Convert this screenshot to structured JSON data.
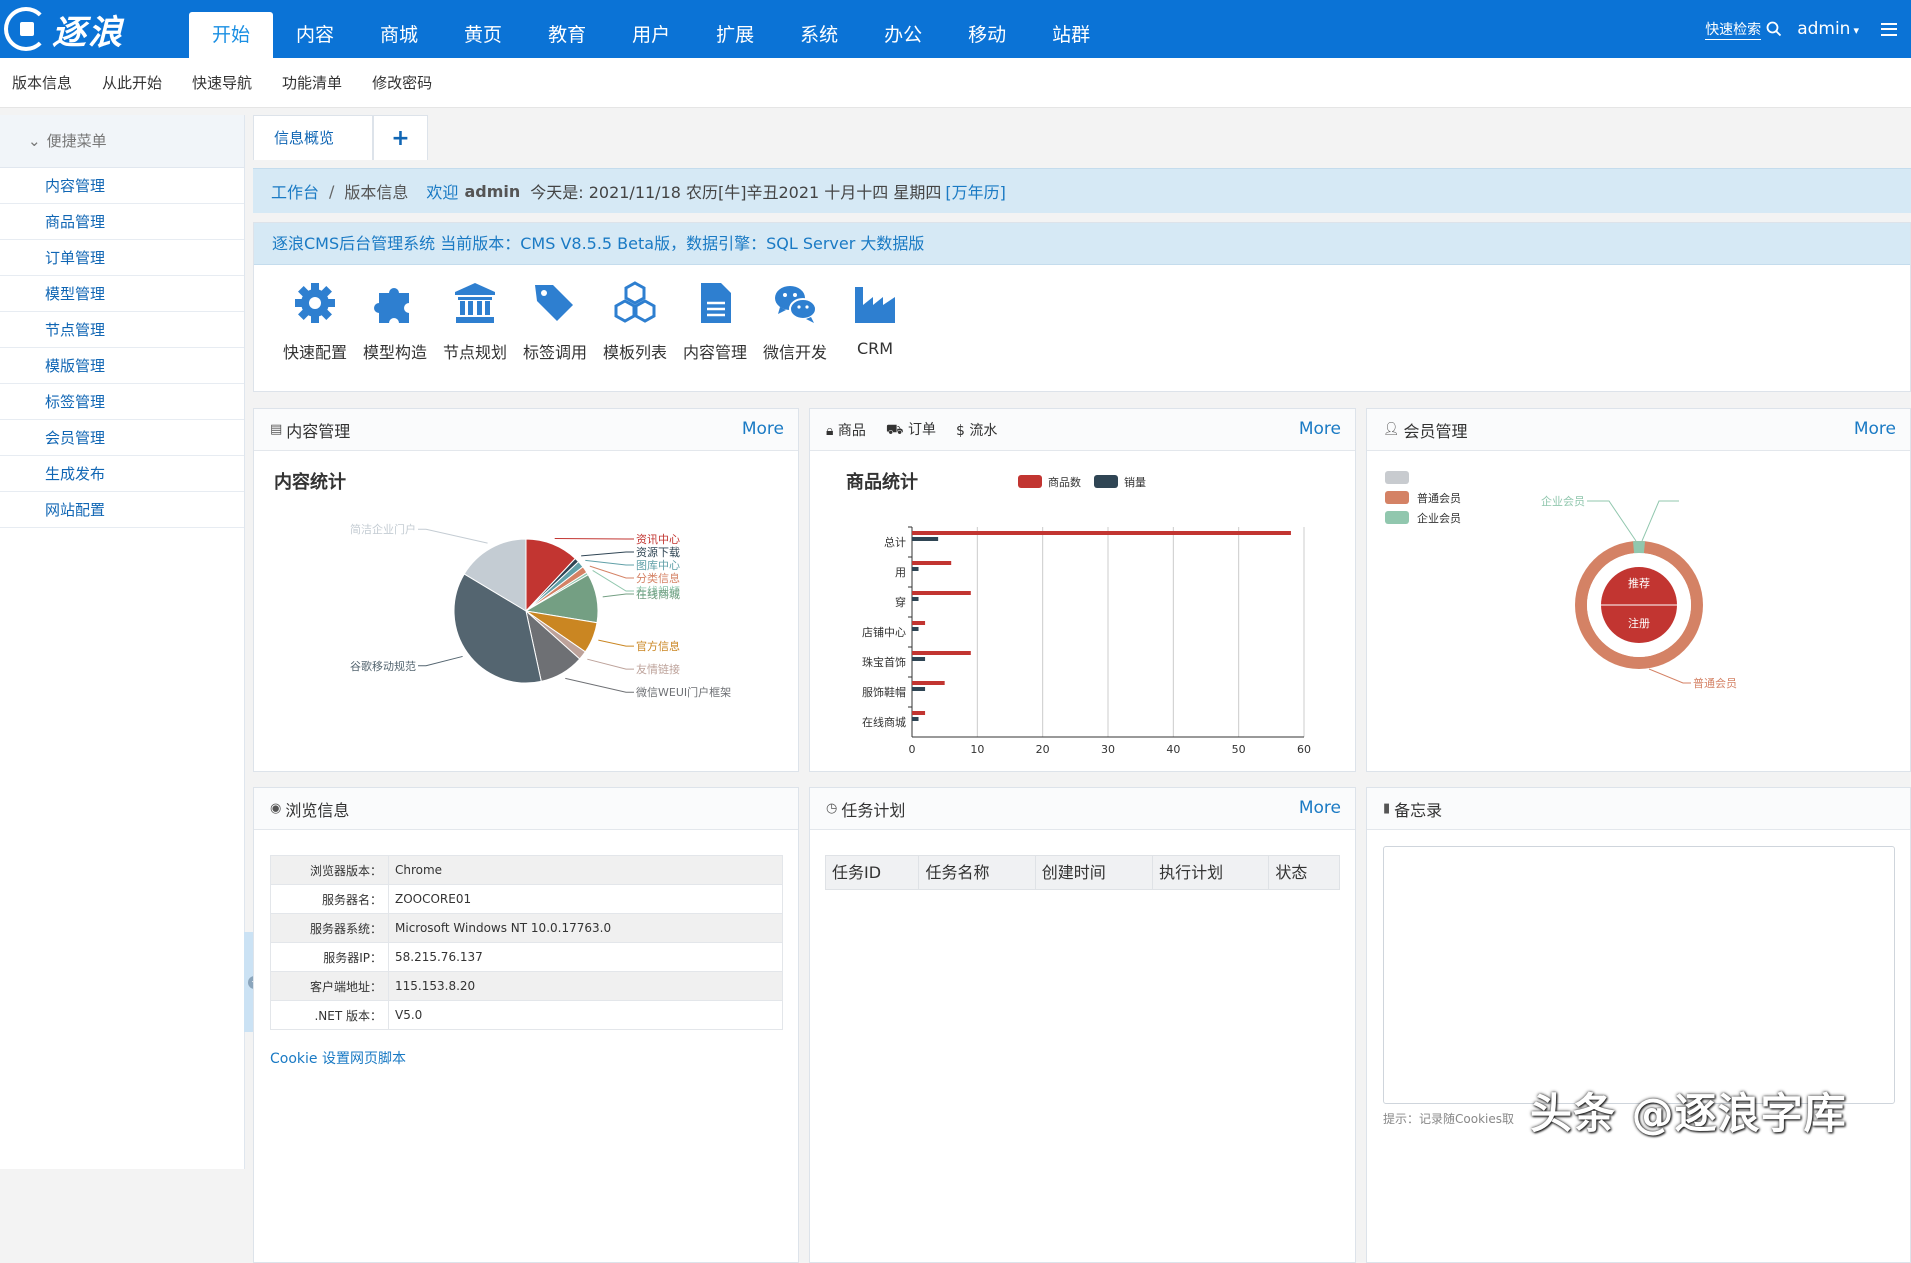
{
  "brand": {
    "logo_text": "逐浪"
  },
  "topnav": {
    "items": [
      "开始",
      "内容",
      "商城",
      "黄页",
      "教育",
      "用户",
      "扩展",
      "系统",
      "办公",
      "移动",
      "站群"
    ]
  },
  "topright": {
    "quick_search": "快速检索",
    "user": "admin"
  },
  "subnav": {
    "items": [
      "版本信息",
      "从此开始",
      "快速导航",
      "功能清单",
      "修改密码"
    ]
  },
  "sidebar": {
    "title": "便捷菜单",
    "items": [
      "内容管理",
      "商品管理",
      "订单管理",
      "模型管理",
      "节点管理",
      "模版管理",
      "标签管理",
      "会员管理",
      "生成发布",
      "网站配置"
    ]
  },
  "tabs": {
    "active": "信息概览",
    "add": "+"
  },
  "breadcrumb": {
    "home": "工作台",
    "current": "版本信息",
    "welcome": "欢迎",
    "user": "admin",
    "today": "今天是: 2021/11/18 农历[牛]辛丑2021 十月十四 星期四",
    "calendar": "[万年历]"
  },
  "version_bar": "逐浪CMS后台管理系统 当前版本：CMS V8.5.5 Beta版，数据引擎：SQL Server 大数据版",
  "quick": {
    "items": [
      {
        "label": "快速配置",
        "icon": "gear-icon"
      },
      {
        "label": "模型构造",
        "icon": "puzzle-icon"
      },
      {
        "label": "节点规划",
        "icon": "institution-icon"
      },
      {
        "label": "标签调用",
        "icon": "tags-icon"
      },
      {
        "label": "模板列表",
        "icon": "cubes-icon"
      },
      {
        "label": "内容管理",
        "icon": "file-text-icon"
      },
      {
        "label": "微信开发",
        "icon": "wechat-icon"
      },
      {
        "label": "CRM",
        "icon": "industry-icon"
      }
    ],
    "color": "#2e7fd0"
  },
  "panels": {
    "content": {
      "title": "内容管理",
      "more": "More"
    },
    "shop": {
      "tabs": [
        "商品",
        "订单",
        "流水"
      ],
      "more": "More"
    },
    "member": {
      "title": "会员管理",
      "more": "More"
    },
    "browse": {
      "title": "浏览信息",
      "cookie_link": "Cookie 设置网页脚本"
    },
    "task": {
      "title": "任务计划",
      "more": "More",
      "columns": [
        "任务ID",
        "任务名称",
        "创建时间",
        "执行计划",
        "状态"
      ]
    },
    "memo": {
      "title": "备忘录",
      "tip": "提示：记录随Cookies取"
    }
  },
  "server_info": [
    {
      "k": "浏览器版本：",
      "v": "Chrome"
    },
    {
      "k": "服务器名：",
      "v": "ZOOCORE01"
    },
    {
      "k": "服务器系统：",
      "v": "Microsoft Windows NT 10.0.17763.0"
    },
    {
      "k": "服务器IP：",
      "v": "58.215.76.137"
    },
    {
      "k": "客户端地址：",
      "v": "115.153.8.20"
    },
    {
      "k": ".NET 版本：",
      "v": "V5.0"
    }
  ],
  "watermark": "头条 @逐浪字库",
  "chart_data": [
    {
      "type": "pie",
      "title": "内容统计",
      "slices": [
        {
          "label": "资讯中心",
          "value": 12,
          "color": "#c23531"
        },
        {
          "label": "资源下载",
          "value": 1,
          "color": "#2f4554"
        },
        {
          "label": "图库中心",
          "value": 1.5,
          "color": "#61a0a8"
        },
        {
          "label": "分类信息",
          "value": 1.5,
          "color": "#d48265"
        },
        {
          "label": "在线视频",
          "value": 0.6,
          "color": "#91c7ae"
        },
        {
          "label": "在线商城",
          "value": 11,
          "color": "#749f83"
        },
        {
          "label": "官方信息",
          "value": 7,
          "color": "#ca8622"
        },
        {
          "label": "友情链接",
          "value": 2,
          "color": "#bda29a"
        },
        {
          "label": "微信WEUI门户框架",
          "value": 10,
          "color": "#6e7074"
        },
        {
          "label": "谷歌移动规范",
          "value": 37,
          "color": "#546570"
        },
        {
          "label": "简洁企业门户",
          "value": 16.4,
          "color": "#c4ccd3"
        }
      ]
    },
    {
      "type": "bar",
      "title": "商品统计",
      "orientation": "horizontal",
      "categories": [
        "总计",
        "用",
        "穿",
        "店铺中心",
        "珠宝首饰",
        "服饰鞋帽",
        "在线商城"
      ],
      "series": [
        {
          "name": "商品数",
          "color": "#c23531",
          "values": [
            58,
            6,
            9,
            2,
            9,
            5,
            2
          ]
        },
        {
          "name": "销量",
          "color": "#2f4554",
          "values": [
            4,
            1,
            1,
            1,
            2,
            2,
            1
          ]
        }
      ],
      "xlim": [
        0,
        60
      ],
      "xticks": [
        0,
        10,
        20,
        30,
        40,
        50,
        60
      ]
    },
    {
      "type": "pie",
      "subtype": "nested-donut",
      "legend": [
        "",
        "普通会员",
        "企业会员"
      ],
      "inner": [
        {
          "label": "推荐",
          "value": 1,
          "color": "#c23531"
        },
        {
          "label": "注册",
          "value": 1,
          "color": "#c23531"
        }
      ],
      "outer": [
        {
          "label": "普通会员",
          "value": 97,
          "color": "#d48265"
        },
        {
          "label": "企业会员",
          "value": 3,
          "color": "#91c7ae"
        }
      ]
    }
  ]
}
